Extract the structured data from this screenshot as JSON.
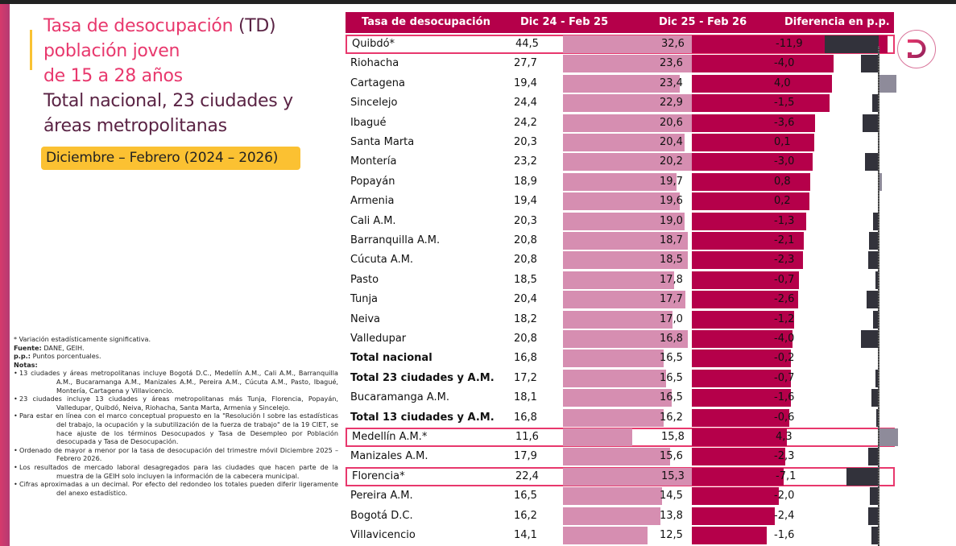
{
  "title": {
    "line1_pink": "Tasa de desocupación",
    "line1_plum": "(TD)",
    "line2": "población joven",
    "line3": "de 15 a 28 años",
    "line4": "Total nacional, 23 ciudades y",
    "line5": "áreas metropolitanas"
  },
  "date_badge": "Diciembre – Febrero (2024 – 2026)",
  "notes": {
    "significance": "* Variación estadísticamente significativa.",
    "source_label": "Fuente:",
    "source_value": "DANE, GEIH.",
    "pp_label": "p.p.:",
    "pp_value": "Puntos porcentuales.",
    "notes_label": "Notas:",
    "items": [
      "13 ciudades y áreas metropolitanas incluye Bogotá D.C., Medellín A.M., Cali A.M., Barranquilla A.M., Bucaramanga A.M., Manizales A.M., Pereira A.M., Cúcuta A.M., Pasto, Ibagué, Montería, Cartagena y Villavicencio.",
      "23 ciudades incluye 13 ciudades y áreas metropolitanas más Tunja, Florencia, Popayán, Valledupar, Quibdó, Neiva, Riohacha, Santa Marta, Armenia y Sincelejo.",
      "Para estar en línea con el marco conceptual propuesto en la \"Resolución I sobre las estadísticas del trabajo, la ocupación y la subutilización de la fuerza de trabajo\" de la 19 CIET, se hace ajuste de los términos Desocupados y Tasa de Desempleo por Población desocupada y Tasa de Desocupación.",
      "Ordenado de mayor a menor por la tasa de desocupación del trimestre móvil Diciembre 2025 – Febrero 2026.",
      "Los resultados de mercado laboral desagregados para las ciudades que hacen parte de la muestra de la GEIH solo incluyen la información de la cabecera municipal.",
      "Cifras aproximadas a un decimal. Por efecto del redondeo los totales pueden diferir ligeramente del anexo estadístico."
    ]
  },
  "colors": {
    "header_bg": "#b5004a",
    "bar_prev": "#d68eb1",
    "bar_curr": "#b5004a",
    "diff_negative": "#32323b",
    "diff_positive": "#8e8b9a",
    "highlight_border": "#e8386d",
    "badge_bg": "#fbc132"
  },
  "logo_icon": "dane-d-logo-icon",
  "chart_data": {
    "type": "table",
    "title": "Tasa de desocupación (TD) población joven de 15 a 28 años",
    "columns": [
      "Tasa de desocupación",
      "Dic 24 - Feb 25",
      "Dic 25 - Feb 26",
      "Diferencia en p.p."
    ],
    "rows": [
      {
        "name": "Quibdó*",
        "prev": "44,5",
        "curr": "32,6",
        "diff": "-11,9",
        "bold": false,
        "highlight": true
      },
      {
        "name": "Riohacha",
        "prev": "27,7",
        "curr": "23,6",
        "diff": "-4,0",
        "bold": false,
        "highlight": false
      },
      {
        "name": "Cartagena",
        "prev": "19,4",
        "curr": "23,4",
        "diff": "4,0",
        "bold": false,
        "highlight": false
      },
      {
        "name": "Sincelejo",
        "prev": "24,4",
        "curr": "22,9",
        "diff": "-1,5",
        "bold": false,
        "highlight": false
      },
      {
        "name": "Ibagué",
        "prev": "24,2",
        "curr": "20,6",
        "diff": "-3,6",
        "bold": false,
        "highlight": false
      },
      {
        "name": "Santa Marta",
        "prev": "20,3",
        "curr": "20,4",
        "diff": "0,1",
        "bold": false,
        "highlight": false
      },
      {
        "name": "Montería",
        "prev": "23,2",
        "curr": "20,2",
        "diff": "-3,0",
        "bold": false,
        "highlight": false
      },
      {
        "name": "Popayán",
        "prev": "18,9",
        "curr": "19,7",
        "diff": "0,8",
        "bold": false,
        "highlight": false
      },
      {
        "name": "Armenia",
        "prev": "19,4",
        "curr": "19,6",
        "diff": "0,2",
        "bold": false,
        "highlight": false
      },
      {
        "name": "Cali A.M.",
        "prev": "20,3",
        "curr": "19,0",
        "diff": "-1,3",
        "bold": false,
        "highlight": false
      },
      {
        "name": "Barranquilla A.M.",
        "prev": "20,8",
        "curr": "18,7",
        "diff": "-2,1",
        "bold": false,
        "highlight": false
      },
      {
        "name": "Cúcuta A.M.",
        "prev": "20,8",
        "curr": "18,5",
        "diff": "-2,3",
        "bold": false,
        "highlight": false
      },
      {
        "name": "Pasto",
        "prev": "18,5",
        "curr": "17,8",
        "diff": "-0,7",
        "bold": false,
        "highlight": false
      },
      {
        "name": "Tunja",
        "prev": "20,4",
        "curr": "17,7",
        "diff": "-2,6",
        "bold": false,
        "highlight": false
      },
      {
        "name": "Neiva",
        "prev": "18,2",
        "curr": "17,0",
        "diff": "-1,2",
        "bold": false,
        "highlight": false
      },
      {
        "name": "Valledupar",
        "prev": "20,8",
        "curr": "16,8",
        "diff": "-4,0",
        "bold": false,
        "highlight": false
      },
      {
        "name": "Total nacional",
        "prev": "16,8",
        "curr": "16,5",
        "diff": "-0,2",
        "bold": true,
        "highlight": false
      },
      {
        "name": "Total 23 ciudades y A.M.",
        "prev": "17,2",
        "curr": "16,5",
        "diff": "-0,7",
        "bold": true,
        "highlight": false
      },
      {
        "name": "Bucaramanga A.M.",
        "prev": "18,1",
        "curr": "16,5",
        "diff": "-1,6",
        "bold": false,
        "highlight": false
      },
      {
        "name": "Total 13 ciudades y A.M.",
        "prev": "16,8",
        "curr": "16,2",
        "diff": "-0,6",
        "bold": true,
        "highlight": false
      },
      {
        "name": "Medellín A.M.*",
        "prev": "11,6",
        "curr": "15,8",
        "diff": "4,3",
        "bold": false,
        "highlight": true
      },
      {
        "name": "Manizales A.M.",
        "prev": "17,9",
        "curr": "15,6",
        "diff": "-2,3",
        "bold": false,
        "highlight": false
      },
      {
        "name": "Florencia*",
        "prev": "22,4",
        "curr": "15,3",
        "diff": "-7,1",
        "bold": false,
        "highlight": true
      },
      {
        "name": "Pereira A.M.",
        "prev": "16,5",
        "curr": "14,5",
        "diff": "-2,0",
        "bold": false,
        "highlight": false
      },
      {
        "name": "Bogotá D.C.",
        "prev": "16,2",
        "curr": "13,8",
        "diff": "-2,4",
        "bold": false,
        "highlight": false
      },
      {
        "name": "Villavicencio",
        "prev": "14,1",
        "curr": "12,5",
        "diff": "-1,6",
        "bold": false,
        "highlight": false
      }
    ]
  }
}
